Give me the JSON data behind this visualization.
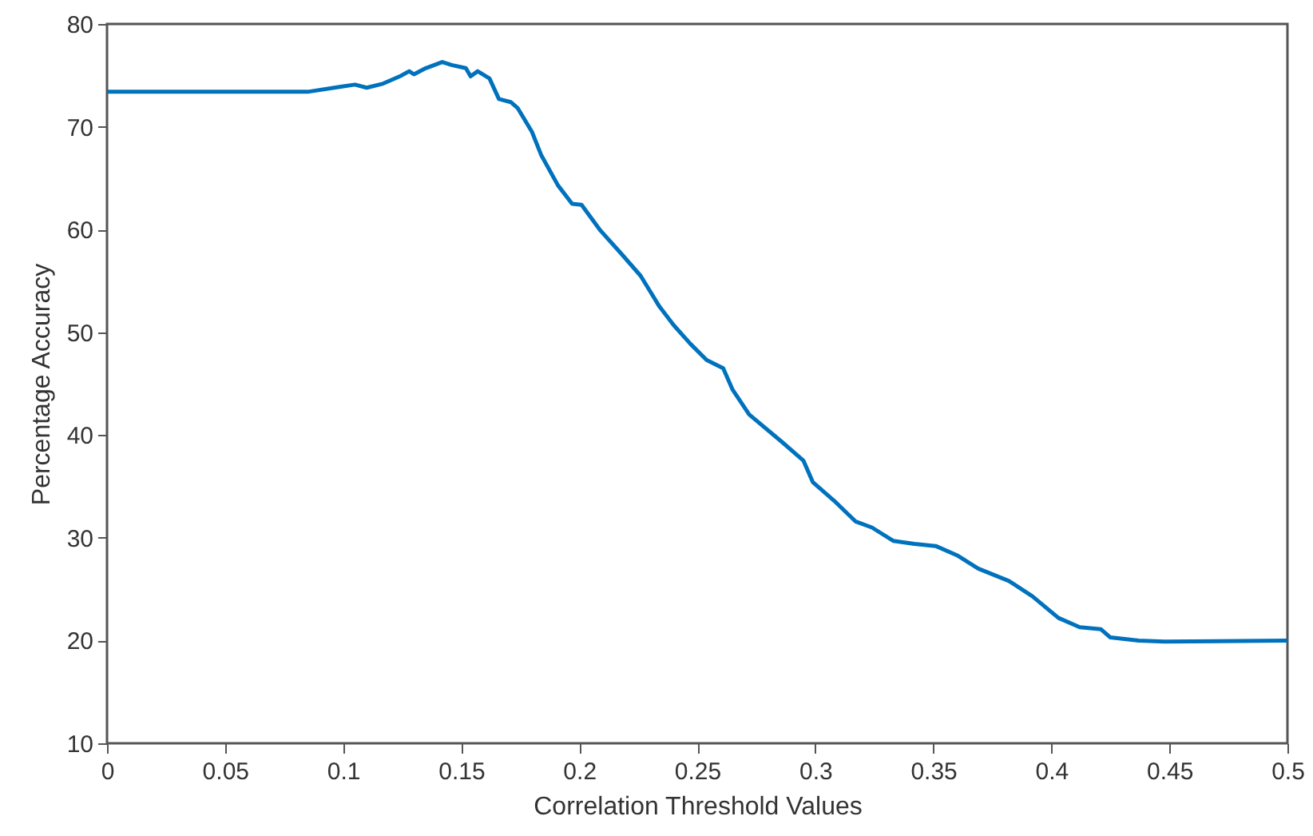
{
  "chart_data": {
    "type": "line",
    "xlabel": "Correlation Threshold Values",
    "ylabel": "Percentage Accuracy",
    "xlim": [
      0,
      0.5
    ],
    "xticks": [
      0,
      0.05,
      0.1,
      0.15,
      0.2,
      0.25,
      0.3,
      0.35,
      0.4,
      0.45,
      0.5
    ],
    "ylim": [
      10,
      80
    ],
    "yticks": [
      10,
      20,
      30,
      40,
      50,
      60,
      70,
      80
    ],
    "grid": false,
    "marker": "none",
    "line_style": "solid",
    "x": [
      0,
      0.085,
      0.099,
      0.105,
      0.11,
      0.117,
      0.124,
      0.128,
      0.13,
      0.135,
      0.142,
      0.146,
      0.152,
      0.154,
      0.157,
      0.162,
      0.166,
      0.171,
      0.174,
      0.18,
      0.184,
      0.191,
      0.197,
      0.201,
      0.209,
      0.218,
      0.226,
      0.23,
      0.234,
      0.24,
      0.247,
      0.254,
      0.261,
      0.265,
      0.272,
      0.286,
      0.295,
      0.299,
      0.308,
      0.317,
      0.324,
      0.333,
      0.342,
      0.351,
      0.36,
      0.369,
      0.382,
      0.392,
      0.403,
      0.412,
      0.421,
      0.425,
      0.437,
      0.448,
      0.5
    ],
    "series": [
      {
        "color": "#0072bd",
        "values": [
          73.4,
          73.4,
          73.9,
          74.1,
          73.8,
          74.2,
          74.9,
          75.4,
          75.1,
          75.7,
          76.3,
          76.0,
          75.7,
          74.9,
          75.4,
          74.7,
          72.7,
          72.4,
          71.8,
          69.5,
          67.2,
          64.3,
          62.5,
          62.4,
          59.9,
          57.6,
          55.5,
          54.0,
          52.5,
          50.7,
          48.9,
          47.3,
          46.5,
          44.4,
          42.0,
          39.3,
          37.5,
          35.4,
          33.6,
          31.6,
          31.0,
          29.7,
          29.4,
          29.2,
          28.3,
          27.0,
          25.8,
          24.3,
          22.2,
          21.3,
          21.1,
          20.3,
          20.0,
          19.9,
          20.0
        ]
      }
    ]
  }
}
